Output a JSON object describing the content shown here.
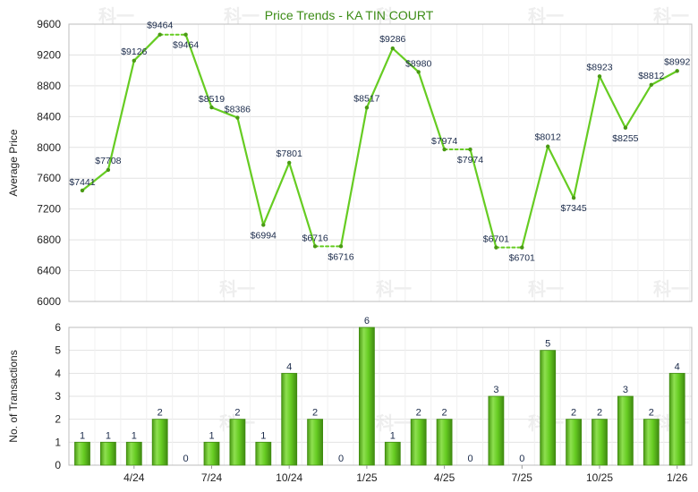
{
  "chart_data": [
    {
      "type": "line",
      "title": "Price Trends - KA TIN COURT",
      "ylabel": "Average Price",
      "ylim": [
        6000,
        9600
      ],
      "yticks": [
        6000,
        6400,
        6800,
        7200,
        7600,
        8000,
        8400,
        8800,
        9200,
        9600
      ],
      "grid": true,
      "points": [
        {
          "value": 7441,
          "label": "$7441"
        },
        {
          "value": 7708,
          "label": "$7708"
        },
        {
          "value": 9126,
          "label": "$9126"
        },
        {
          "value": 9464,
          "label": "$9464"
        },
        {
          "value": 9464,
          "label": "$9464"
        },
        {
          "value": 8519,
          "label": "$8519"
        },
        {
          "value": 8386,
          "label": "$8386"
        },
        {
          "value": 6994,
          "label": "$6994"
        },
        {
          "value": 7801,
          "label": "$7801"
        },
        {
          "value": 6716,
          "label": "$6716"
        },
        {
          "value": 6716,
          "label": "$6716"
        },
        {
          "value": 8517,
          "label": "$8517"
        },
        {
          "value": 9286,
          "label": "$9286"
        },
        {
          "value": 8980,
          "label": "$8980"
        },
        {
          "value": 7974,
          "label": "$7974"
        },
        {
          "value": 7974,
          "label": "$7974"
        },
        {
          "value": 6701,
          "label": "$6701"
        },
        {
          "value": 6701,
          "label": "$6701"
        },
        {
          "value": 8012,
          "label": "$8012"
        },
        {
          "value": 7345,
          "label": "$7345"
        },
        {
          "value": 8923,
          "label": "$8923"
        },
        {
          "value": 8255,
          "label": "$8255"
        },
        {
          "value": 8812,
          "label": "$8812"
        },
        {
          "value": 8992,
          "label": "$8992"
        }
      ],
      "carried_forward_months": [
        4,
        10,
        15,
        17
      ],
      "line_color": "#66cc22"
    },
    {
      "type": "bar",
      "ylabel": "No. of Transactions",
      "ylim": [
        0,
        6
      ],
      "yticks": [
        0,
        1,
        2,
        3,
        4,
        5,
        6
      ],
      "grid": true,
      "values": [
        1,
        1,
        1,
        2,
        0,
        1,
        2,
        1,
        4,
        2,
        0,
        6,
        1,
        2,
        2,
        0,
        3,
        0,
        5,
        2,
        2,
        3,
        2,
        4
      ],
      "x_tick_labels": [
        {
          "month": 2,
          "label": "4/24"
        },
        {
          "month": 5,
          "label": "7/24"
        },
        {
          "month": 8,
          "label": "10/24"
        },
        {
          "month": 11,
          "label": "1/25"
        },
        {
          "month": 14,
          "label": "4/25"
        },
        {
          "month": 17,
          "label": "7/25"
        },
        {
          "month": 20,
          "label": "10/25"
        },
        {
          "month": 23,
          "label": "1/26"
        }
      ],
      "bar_color": "#66cc22"
    }
  ],
  "watermark_text": "科一"
}
